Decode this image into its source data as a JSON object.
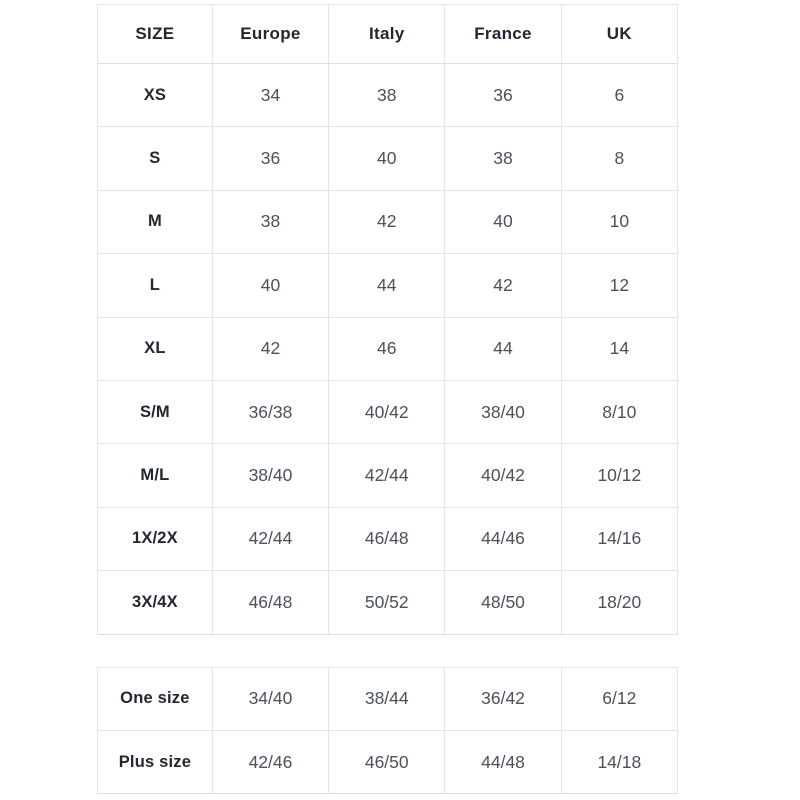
{
  "size_chart": {
    "columns": [
      "SIZE",
      "Europe",
      "Italy",
      "France",
      "UK"
    ],
    "rows": [
      {
        "size": "XS",
        "values": [
          "34",
          "38",
          "36",
          "6"
        ]
      },
      {
        "size": "S",
        "values": [
          "36",
          "40",
          "38",
          "8"
        ]
      },
      {
        "size": "M",
        "values": [
          "38",
          "42",
          "40",
          "10"
        ]
      },
      {
        "size": "L",
        "values": [
          "40",
          "44",
          "42",
          "12"
        ]
      },
      {
        "size": "XL",
        "values": [
          "42",
          "46",
          "44",
          "14"
        ]
      },
      {
        "size": "S/M",
        "values": [
          "36/38",
          "40/42",
          "38/40",
          "8/10"
        ]
      },
      {
        "size": "M/L",
        "values": [
          "38/40",
          "42/44",
          "40/42",
          "10/12"
        ]
      },
      {
        "size": "1X/2X",
        "values": [
          "42/44",
          "46/48",
          "44/46",
          "14/16"
        ]
      },
      {
        "size": "3X/4X",
        "values": [
          "46/48",
          "50/52",
          "48/50",
          "18/20"
        ]
      }
    ]
  },
  "special_sizes": {
    "rows": [
      {
        "size": "One size",
        "values": [
          "34/40",
          "38/44",
          "36/42",
          "6/12"
        ]
      },
      {
        "size": "Plus size",
        "values": [
          "42/46",
          "46/50",
          "44/48",
          "14/18"
        ]
      }
    ]
  },
  "colors": {
    "header_text": "#23272f",
    "body_text": "#4c515a",
    "border": "#e4e5e7",
    "background": "#ffffff"
  }
}
